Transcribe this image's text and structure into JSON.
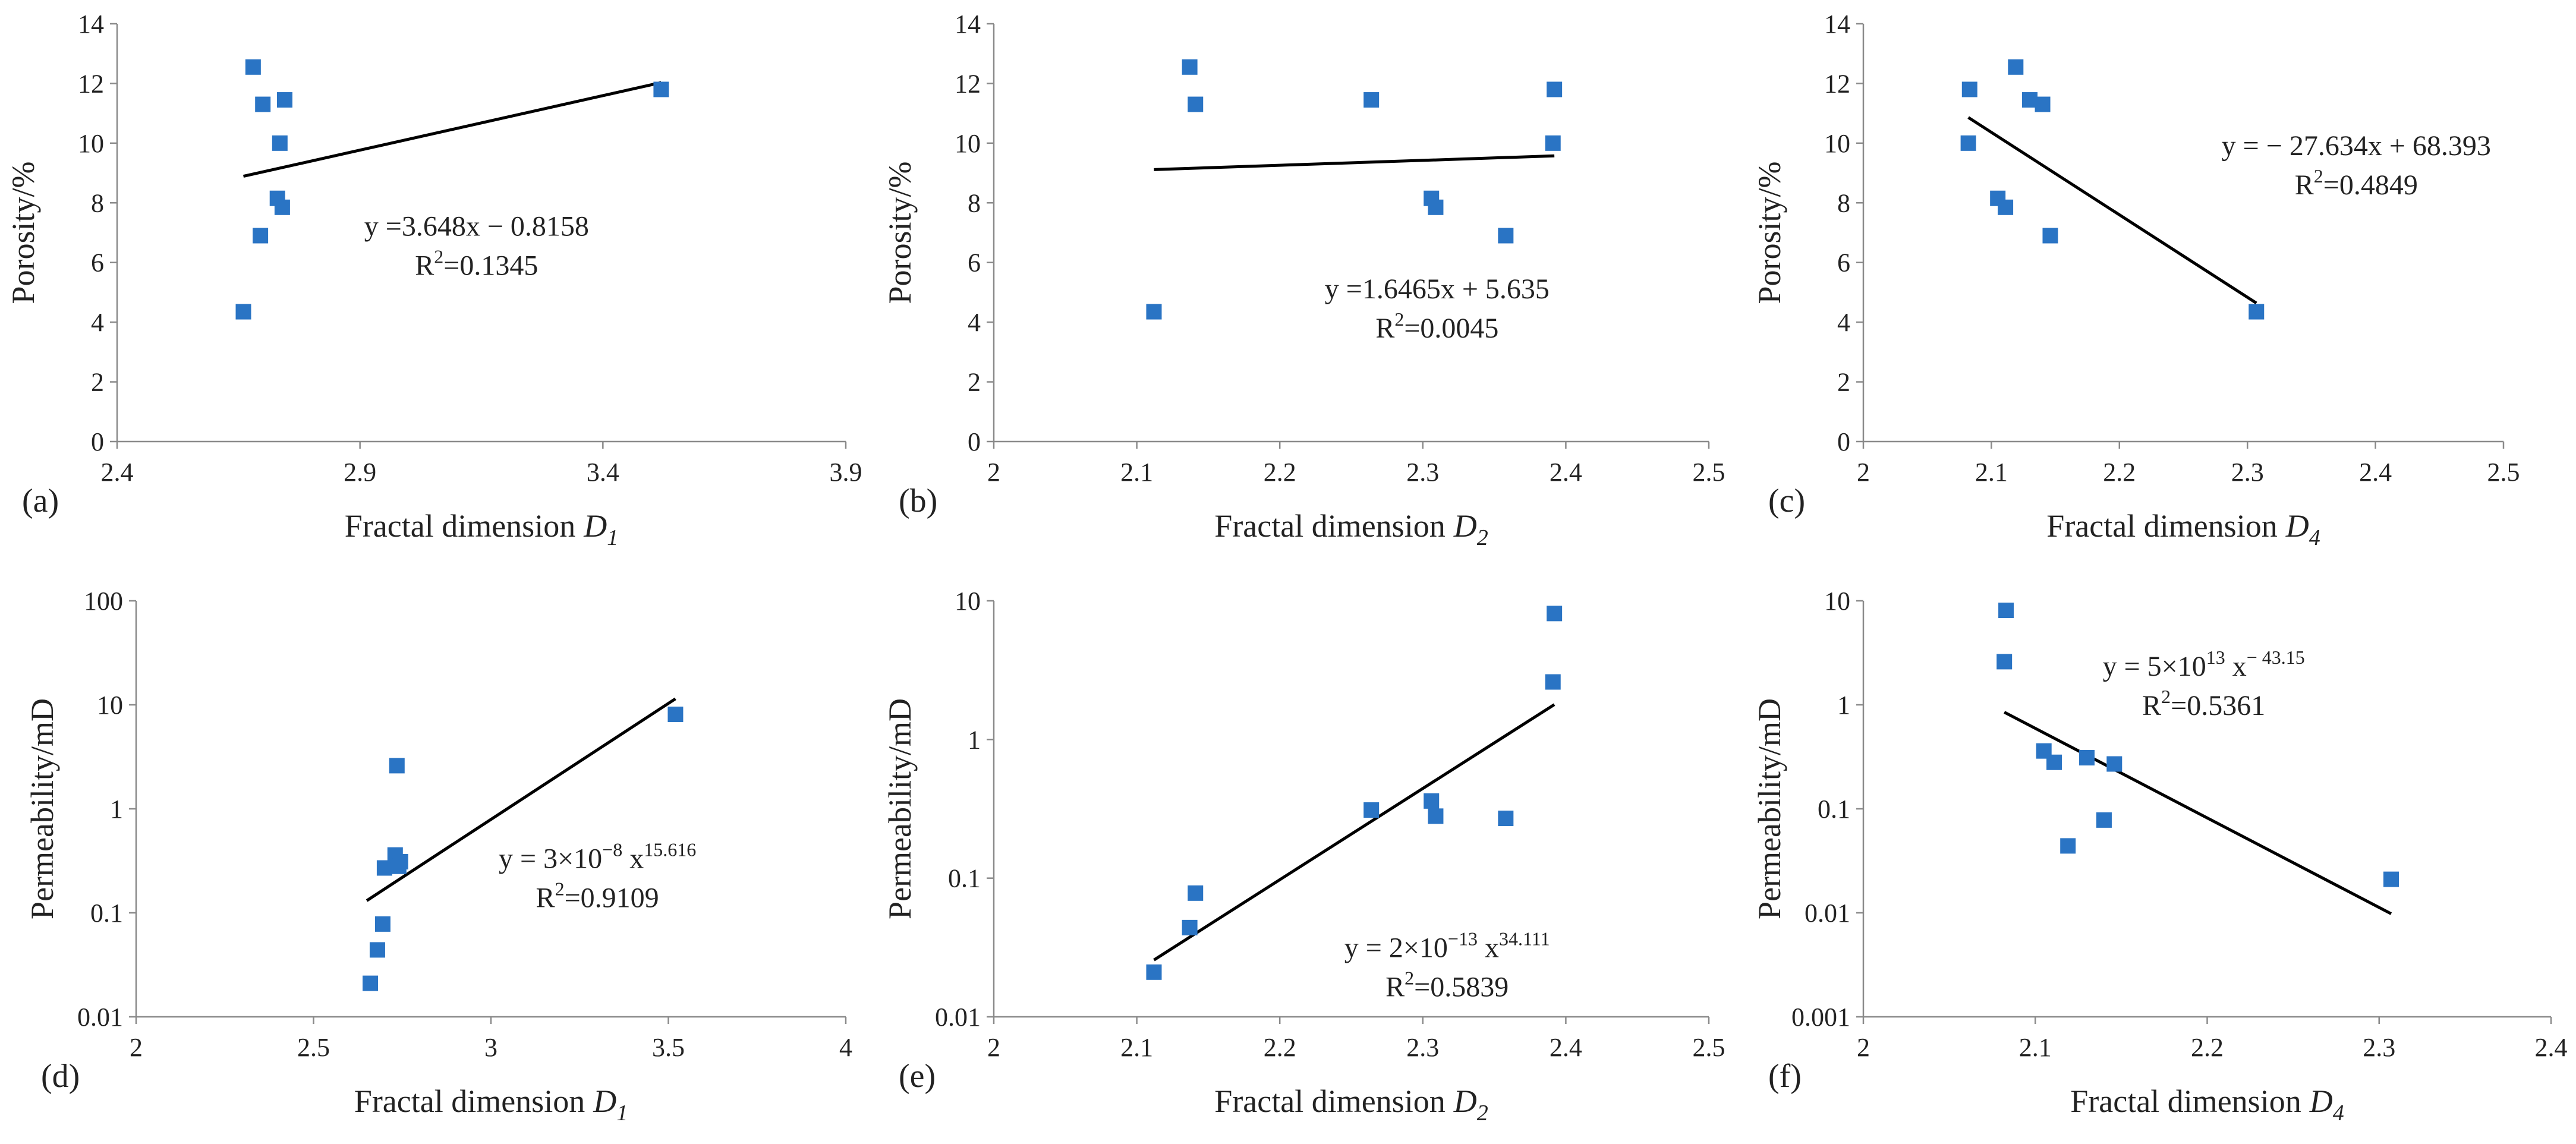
{
  "chart_data": [
    {
      "id": "a",
      "panel_label": "(a)",
      "type": "scatter",
      "yscale": "linear",
      "xlabel": "Fractal dimension",
      "xsub": "1",
      "ylabel": "Porosity/%",
      "xlim": [
        2.4,
        3.9
      ],
      "ylim": [
        0,
        14
      ],
      "xticks": [
        "2.4",
        "2.9",
        "3.4",
        "3.9"
      ],
      "yticks": [
        "0",
        "2",
        "4",
        "6",
        "8",
        "10",
        "12",
        "14"
      ],
      "points": [
        [
          2.66,
          4.35
        ],
        [
          2.68,
          12.55
        ],
        [
          2.695,
          6.9
        ],
        [
          2.7,
          11.3
        ],
        [
          2.73,
          8.15
        ],
        [
          2.735,
          10.0
        ],
        [
          2.74,
          7.85
        ],
        [
          2.745,
          11.45
        ],
        [
          3.52,
          11.8
        ]
      ],
      "fit": {
        "x": [
          2.66,
          3.52
        ],
        "y": [
          8.89,
          12.03
        ]
      },
      "equation": {
        "lines": [
          [
            {
              "t": "y =3.648x − 0.8158"
            }
          ],
          [
            {
              "t": "R"
            },
            {
              "t": "2",
              "sup": true
            },
            {
              "t": "=0.1345"
            }
          ]
        ],
        "anchor": [
          3.14,
          6.9
        ]
      }
    },
    {
      "id": "b",
      "panel_label": "(b)",
      "type": "scatter",
      "yscale": "linear",
      "xlabel": "Fractal dimension",
      "xsub": "2",
      "ylabel": "Porosity/%",
      "xlim": [
        2.0,
        2.5
      ],
      "ylim": [
        0,
        14
      ],
      "xticks": [
        "2",
        "2.1",
        "2.2",
        "2.3",
        "2.4",
        "2.5"
      ],
      "yticks": [
        "0",
        "2",
        "4",
        "6",
        "8",
        "10",
        "12",
        "14"
      ],
      "points": [
        [
          2.112,
          4.35
        ],
        [
          2.137,
          12.55
        ],
        [
          2.141,
          11.3
        ],
        [
          2.264,
          11.45
        ],
        [
          2.306,
          8.15
        ],
        [
          2.309,
          7.85
        ],
        [
          2.358,
          6.9
        ],
        [
          2.391,
          10.0
        ],
        [
          2.392,
          11.8
        ]
      ],
      "fit": {
        "x": [
          2.112,
          2.392
        ],
        "y": [
          9.113,
          9.574
        ]
      },
      "equation": {
        "lines": [
          [
            {
              "t": "y =1.6465x + 5.635"
            }
          ],
          [
            {
              "t": "R"
            },
            {
              "t": "2",
              "sup": true
            },
            {
              "t": "=0.0045"
            }
          ]
        ],
        "anchor": [
          2.31,
          4.8
        ]
      }
    },
    {
      "id": "c",
      "panel_label": "(c)",
      "type": "scatter",
      "yscale": "linear",
      "xlabel": "Fractal dimension",
      "xsub": "4",
      "ylabel": "Porosity/%",
      "xlim": [
        2.0,
        2.5
      ],
      "ylim": [
        0,
        14
      ],
      "xticks": [
        "2",
        "2.1",
        "2.2",
        "2.3",
        "2.4",
        "2.5"
      ],
      "yticks": [
        "0",
        "2",
        "4",
        "6",
        "8",
        "10",
        "12",
        "14"
      ],
      "points": [
        [
          2.082,
          10.0
        ],
        [
          2.083,
          11.8
        ],
        [
          2.105,
          8.15
        ],
        [
          2.111,
          7.85
        ],
        [
          2.119,
          12.55
        ],
        [
          2.13,
          11.45
        ],
        [
          2.14,
          11.3
        ],
        [
          2.146,
          6.9
        ],
        [
          2.307,
          4.35
        ]
      ],
      "fit": {
        "x": [
          2.082,
          2.307
        ],
        "y": [
          10.86,
          4.64
        ]
      },
      "equation": {
        "lines": [
          [
            {
              "t": "y = − 27.634x + 68.393"
            }
          ],
          [
            {
              "t": "R"
            },
            {
              "t": "2",
              "sup": true
            },
            {
              "t": "=0.4849"
            }
          ]
        ],
        "anchor": [
          2.385,
          9.6
        ]
      }
    },
    {
      "id": "d",
      "panel_label": "(d)",
      "type": "scatter",
      "yscale": "log",
      "xlabel": "Fractal dimension",
      "xsub": "1",
      "ylabel": "Permeability/mD",
      "xlim": [
        2.0,
        4.0
      ],
      "ylim": [
        0.01,
        100
      ],
      "xticks": [
        "2",
        "2.5",
        "3",
        "3.5",
        "4"
      ],
      "yticks": [
        "0.01",
        "0.1",
        "1",
        "10",
        "100"
      ],
      "points": [
        [
          2.66,
          0.021
        ],
        [
          2.68,
          0.044
        ],
        [
          2.695,
          0.078
        ],
        [
          2.7,
          0.27
        ],
        [
          2.73,
          0.36
        ],
        [
          2.735,
          2.6
        ],
        [
          2.74,
          0.28
        ],
        [
          2.745,
          0.31
        ],
        [
          3.52,
          8.1
        ]
      ],
      "fit": {
        "x": [
          2.65,
          3.52
        ],
        "y": [
          0.131,
          11.43
        ]
      },
      "equation": {
        "lines": [
          [
            {
              "t": "y = 3×10"
            },
            {
              "t": "−8",
              "sup": true
            },
            {
              "t": " x"
            },
            {
              "t": "15.616",
              "sup": true
            }
          ],
          [
            {
              "t": "R"
            },
            {
              "t": "2",
              "sup": true
            },
            {
              "t": "=0.9109"
            }
          ]
        ],
        "anchor": [
          3.3,
          0.27
        ]
      }
    },
    {
      "id": "e",
      "panel_label": "(e)",
      "type": "scatter",
      "yscale": "log",
      "xlabel": "Fractal dimension",
      "xsub": "2",
      "ylabel": "Permeability/mD",
      "xlim": [
        2.0,
        2.5
      ],
      "ylim": [
        0.01,
        10
      ],
      "xticks": [
        "2",
        "2.1",
        "2.2",
        "2.3",
        "2.4",
        "2.5"
      ],
      "yticks": [
        "0.01",
        "0.1",
        "1",
        "10"
      ],
      "points": [
        [
          2.112,
          0.021
        ],
        [
          2.137,
          0.044
        ],
        [
          2.141,
          0.078
        ],
        [
          2.264,
          0.31
        ],
        [
          2.306,
          0.36
        ],
        [
          2.309,
          0.28
        ],
        [
          2.358,
          0.27
        ],
        [
          2.391,
          2.6
        ],
        [
          2.392,
          8.1
        ]
      ],
      "fit": {
        "x": [
          2.112,
          2.392
        ],
        "y": [
          0.0257,
          1.786
        ]
      },
      "equation": {
        "lines": [
          [
            {
              "t": "y = 2×10"
            },
            {
              "t": "−13",
              "sup": true
            },
            {
              "t": " x"
            },
            {
              "t": "34.111",
              "sup": true
            }
          ],
          [
            {
              "t": "R"
            },
            {
              "t": "2",
              "sup": true
            },
            {
              "t": "=0.5839"
            }
          ]
        ],
        "anchor": [
          2.317,
          0.027
        ]
      }
    },
    {
      "id": "f",
      "panel_label": "(f)",
      "type": "scatter",
      "yscale": "log",
      "xlabel": "Fractal dimension",
      "xsub": "4",
      "ylabel": "Permeability/mD",
      "xlim": [
        2.0,
        2.4
      ],
      "ylim": [
        0.001,
        10
      ],
      "xticks": [
        "2",
        "2.1",
        "2.2",
        "2.3",
        "2.4"
      ],
      "yticks": [
        "0.001",
        "0.01",
        "0.1",
        "1",
        "10"
      ],
      "points": [
        [
          2.082,
          2.6
        ],
        [
          2.083,
          8.1
        ],
        [
          2.105,
          0.36
        ],
        [
          2.111,
          0.28
        ],
        [
          2.119,
          0.044
        ],
        [
          2.13,
          0.31
        ],
        [
          2.14,
          0.078
        ],
        [
          2.146,
          0.27
        ],
        [
          2.307,
          0.021
        ]
      ],
      "fit": {
        "x": [
          2.082,
          2.307
        ],
        "y": [
          0.849,
          0.0098
        ]
      },
      "equation": {
        "lines": [
          [
            {
              "t": "y = 5×10"
            },
            {
              "t": "13",
              "sup": true
            },
            {
              "t": " x"
            },
            {
              "t": "− 43.15",
              "sup": true
            }
          ],
          [
            {
              "t": "R"
            },
            {
              "t": "2",
              "sup": true
            },
            {
              "t": "=0.5361"
            }
          ]
        ],
        "anchor": [
          2.198,
          1.9
        ]
      }
    }
  ],
  "colors": {
    "marker": "#2a74c4",
    "fit_line": "#000000",
    "axis": "#8a8a8a",
    "text": "#222222"
  }
}
